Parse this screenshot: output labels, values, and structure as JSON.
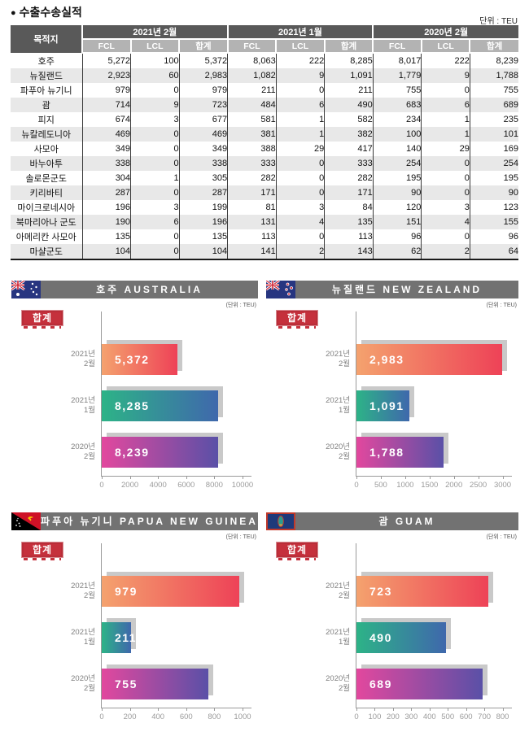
{
  "title": {
    "bullet": "●",
    "text": "수출수송실적"
  },
  "unit_label": "단위 : TEU",
  "table": {
    "destination_header": "목적지",
    "period_headers": [
      "2021년 2월",
      "2021년 1월",
      "2020년 2월"
    ],
    "sub_headers": [
      "FCL",
      "LCL",
      "합계"
    ],
    "rows": [
      {
        "dest": "호주",
        "cells": [
          "5,272",
          "100",
          "5,372",
          "8,063",
          "222",
          "8,285",
          "8,017",
          "222",
          "8,239"
        ]
      },
      {
        "dest": "뉴질랜드",
        "cells": [
          "2,923",
          "60",
          "2,983",
          "1,082",
          "9",
          "1,091",
          "1,779",
          "9",
          "1,788"
        ]
      },
      {
        "dest": "파푸아 뉴기니",
        "cells": [
          "979",
          "0",
          "979",
          "211",
          "0",
          "211",
          "755",
          "0",
          "755"
        ]
      },
      {
        "dest": "괌",
        "cells": [
          "714",
          "9",
          "723",
          "484",
          "6",
          "490",
          "683",
          "6",
          "689"
        ]
      },
      {
        "dest": "피지",
        "cells": [
          "674",
          "3",
          "677",
          "581",
          "1",
          "582",
          "234",
          "1",
          "235"
        ]
      },
      {
        "dest": "뉴칼레도니아",
        "cells": [
          "469",
          "0",
          "469",
          "381",
          "1",
          "382",
          "100",
          "1",
          "101"
        ]
      },
      {
        "dest": "사모아",
        "cells": [
          "349",
          "0",
          "349",
          "388",
          "29",
          "417",
          "140",
          "29",
          "169"
        ]
      },
      {
        "dest": "바누아투",
        "cells": [
          "338",
          "0",
          "338",
          "333",
          "0",
          "333",
          "254",
          "0",
          "254"
        ]
      },
      {
        "dest": "솔로몬군도",
        "cells": [
          "304",
          "1",
          "305",
          "282",
          "0",
          "282",
          "195",
          "0",
          "195"
        ]
      },
      {
        "dest": "키리바티",
        "cells": [
          "287",
          "0",
          "287",
          "171",
          "0",
          "171",
          "90",
          "0",
          "90"
        ]
      },
      {
        "dest": "마이크로네시아",
        "cells": [
          "196",
          "3",
          "199",
          "81",
          "3",
          "84",
          "120",
          "3",
          "123"
        ]
      },
      {
        "dest": "북마리아나 군도",
        "cells": [
          "190",
          "6",
          "196",
          "131",
          "4",
          "135",
          "151",
          "4",
          "155"
        ]
      },
      {
        "dest": "아메리칸 사모아",
        "cells": [
          "135",
          "0",
          "135",
          "113",
          "0",
          "113",
          "96",
          "0",
          "96"
        ]
      },
      {
        "dest": "마샬군도",
        "cells": [
          "104",
          "0",
          "104",
          "141",
          "2",
          "143",
          "62",
          "2",
          "64"
        ]
      }
    ]
  },
  "chart_data": [
    {
      "type": "bar",
      "orientation": "horizontal",
      "title": "호주 AUSTRALIA",
      "unit_note": "(단위 : TEU)",
      "legend_badge": "합계",
      "categories": [
        "2021년 2월",
        "2021년 1월",
        "2020년 2월"
      ],
      "values": [
        5372,
        8285,
        8239
      ],
      "value_labels": [
        "5,372",
        "8,285",
        "8,239"
      ],
      "xticks": [
        0,
        2000,
        4000,
        6000,
        8000,
        10000
      ],
      "xlim": [
        0,
        10000
      ]
    },
    {
      "type": "bar",
      "orientation": "horizontal",
      "title": "뉴질랜드 NEW ZEALAND",
      "unit_note": "(단위 : TEU)",
      "legend_badge": "합계",
      "categories": [
        "2021년 2월",
        "2021년 1월",
        "2020년 2월"
      ],
      "values": [
        2983,
        1091,
        1788
      ],
      "value_labels": [
        "2,983",
        "1,091",
        "1,788"
      ],
      "xticks": [
        0,
        500,
        1000,
        1500,
        2000,
        2500,
        3000
      ],
      "xlim": [
        0,
        3000
      ]
    },
    {
      "type": "bar",
      "orientation": "horizontal",
      "title": "파푸아 뉴기니 PAPUA NEW GUINEA",
      "unit_note": "(단위 : TEU)",
      "legend_badge": "합계",
      "categories": [
        "2021년 2월",
        "2021년 1월",
        "2020년 2월"
      ],
      "values": [
        979,
        211,
        755
      ],
      "value_labels": [
        "979",
        "211",
        "755"
      ],
      "xticks": [
        0,
        200,
        400,
        600,
        800,
        1000
      ],
      "xlim": [
        0,
        1000
      ]
    },
    {
      "type": "bar",
      "orientation": "horizontal",
      "title": "괌 GUAM",
      "unit_note": "(단위 : TEU)",
      "legend_badge": "합계",
      "categories": [
        "2021년 2월",
        "2021년 1월",
        "2020년 2월"
      ],
      "values": [
        723,
        490,
        689
      ],
      "value_labels": [
        "723",
        "490",
        "689"
      ],
      "xticks": [
        0,
        100,
        200,
        300,
        400,
        500,
        600,
        700,
        800
      ],
      "xlim": [
        0,
        800
      ]
    }
  ],
  "style": {
    "bar_gradients": [
      [
        "#f4a26e",
        "#ee4257"
      ],
      [
        "#2db387",
        "#3f68ac"
      ],
      [
        "#e2489e",
        "#5a50a7"
      ]
    ],
    "bar_shadow": "#c9c9c9",
    "banner_bg": "#727272",
    "badge_bg": "#c5303c",
    "table_header_dark": "#595959",
    "table_header_light": "#b3b3b3",
    "table_row_alt": "#e8e8e8"
  }
}
